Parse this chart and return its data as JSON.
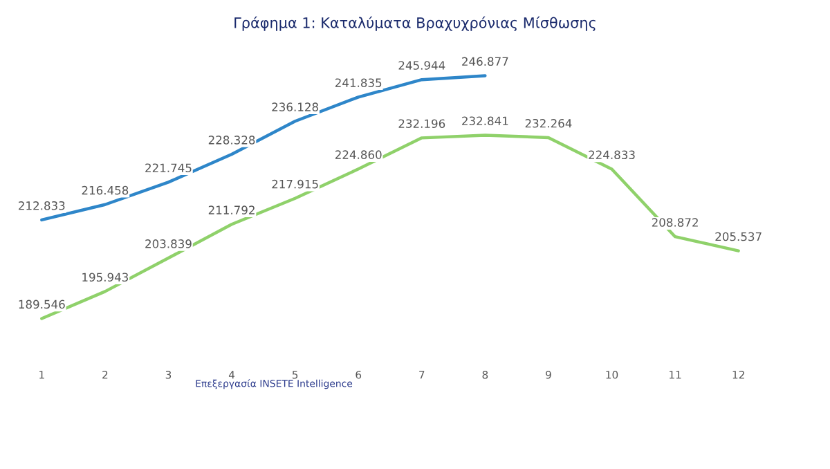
{
  "chart_data": {
    "type": "line",
    "title": "Γράφημα 1: Καταλύματα Βραχυχρόνιας Μίσθωσης",
    "categories": [
      "1",
      "2",
      "3",
      "4",
      "5",
      "6",
      "7",
      "8",
      "9",
      "10",
      "11",
      "12"
    ],
    "series": [
      {
        "color": "#2e86c9",
        "values": [
          212833,
          216458,
          221745,
          228328,
          236128,
          241835,
          245944,
          246877,
          null,
          null,
          null,
          null
        ],
        "value_labels": [
          "212.833",
          "216.458",
          "221.745",
          "228.328",
          "236.128",
          "241.835",
          "245.944",
          "246.877",
          null,
          null,
          null,
          null
        ]
      },
      {
        "color": "#8fd16a",
        "values": [
          189546,
          195943,
          203839,
          211792,
          217915,
          224860,
          232196,
          232841,
          232264,
          224833,
          208872,
          205537
        ],
        "value_labels": [
          "189.546",
          "195.943",
          "203.839",
          "211.792",
          "217.915",
          "224.860",
          "232.196",
          "232.841",
          "232.264",
          "224.833",
          "208.872",
          "205.537"
        ]
      }
    ],
    "annotations": [
      "Επεξεργασία INSETE Intelligence"
    ],
    "grid": false,
    "marker": "none",
    "line_style": "solid"
  }
}
